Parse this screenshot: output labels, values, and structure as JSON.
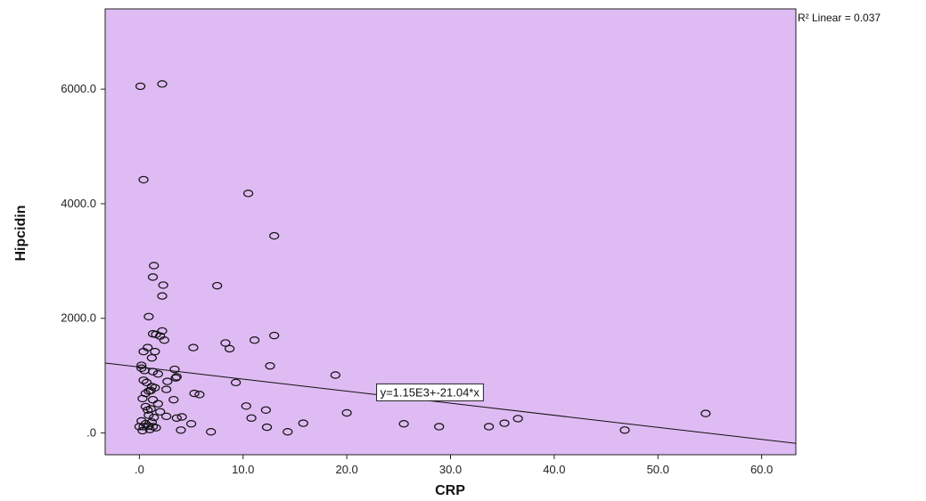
{
  "chart_data": {
    "type": "scatter",
    "title": "",
    "xlabel": "CRP",
    "ylabel": "Hipcidin",
    "xlim": [
      -3.3,
      63.3
    ],
    "ylim": [
      -380,
      7400
    ],
    "x_ticks": [
      0,
      10,
      20,
      30,
      40,
      50,
      60
    ],
    "x_tick_labels": [
      ".0",
      "10.0",
      "20.0",
      "30.0",
      "40.0",
      "50.0",
      "60.0"
    ],
    "y_ticks": [
      0,
      2000,
      4000,
      6000
    ],
    "y_tick_labels": [
      ".0",
      "2000.0",
      "4000.0",
      "6000.0"
    ],
    "grid": false,
    "plot_background": "#dfbbf3",
    "marker_color": "#111111",
    "fit_line": {
      "intercept": 1150,
      "slope": -21.04,
      "equation_label": "y=1.15E3+-21.04*x"
    },
    "r2_label": "R² Linear = 0.037",
    "points": [
      [
        0.1,
        6050
      ],
      [
        2.2,
        6090
      ],
      [
        0.4,
        4420
      ],
      [
        10.5,
        4180
      ],
      [
        13.0,
        3440
      ],
      [
        1.4,
        2920
      ],
      [
        1.3,
        2720
      ],
      [
        2.3,
        2580
      ],
      [
        7.5,
        2570
      ],
      [
        2.2,
        2390
      ],
      [
        0.9,
        2030
      ],
      [
        2.2,
        1780
      ],
      [
        1.3,
        1730
      ],
      [
        1.6,
        1720
      ],
      [
        2.0,
        1690
      ],
      [
        2.4,
        1620
      ],
      [
        13.0,
        1700
      ],
      [
        11.1,
        1620
      ],
      [
        8.3,
        1570
      ],
      [
        8.7,
        1470
      ],
      [
        5.2,
        1490
      ],
      [
        0.8,
        1490
      ],
      [
        0.4,
        1420
      ],
      [
        1.5,
        1420
      ],
      [
        1.2,
        1310
      ],
      [
        12.6,
        1170
      ],
      [
        0.2,
        1180
      ],
      [
        0.2,
        1130
      ],
      [
        3.4,
        1110
      ],
      [
        0.5,
        1090
      ],
      [
        1.3,
        1070
      ],
      [
        1.8,
        1030
      ],
      [
        3.6,
        980
      ],
      [
        3.5,
        960
      ],
      [
        18.9,
        1010
      ],
      [
        0.4,
        920
      ],
      [
        0.7,
        880
      ],
      [
        9.3,
        880
      ],
      [
        2.7,
        900
      ],
      [
        1.2,
        810
      ],
      [
        1.5,
        790
      ],
      [
        1.1,
        740
      ],
      [
        2.6,
        760
      ],
      [
        0.9,
        730
      ],
      [
        0.6,
        690
      ],
      [
        5.3,
        690
      ],
      [
        5.8,
        670
      ],
      [
        0.3,
        600
      ],
      [
        1.3,
        580
      ],
      [
        3.3,
        580
      ],
      [
        1.8,
        510
      ],
      [
        0.6,
        460
      ],
      [
        1.1,
        420
      ],
      [
        0.8,
        400
      ],
      [
        2.0,
        370
      ],
      [
        10.3,
        470
      ],
      [
        12.2,
        400
      ],
      [
        20.0,
        350
      ],
      [
        54.6,
        340
      ],
      [
        0.9,
        310
      ],
      [
        1.4,
        270
      ],
      [
        2.6,
        290
      ],
      [
        3.6,
        260
      ],
      [
        4.1,
        280
      ],
      [
        36.5,
        250
      ],
      [
        10.8,
        260
      ],
      [
        0.2,
        210
      ],
      [
        1.2,
        190
      ],
      [
        0.6,
        160
      ],
      [
        15.8,
        170
      ],
      [
        25.5,
        160
      ],
      [
        35.2,
        170
      ],
      [
        5.0,
        160
      ],
      [
        0.9,
        120
      ],
      [
        0.0,
        110
      ],
      [
        0.4,
        110
      ],
      [
        1.3,
        110
      ],
      [
        1.6,
        90
      ],
      [
        12.3,
        100
      ],
      [
        28.9,
        110
      ],
      [
        33.7,
        110
      ],
      [
        1.0,
        60
      ],
      [
        4.0,
        50
      ],
      [
        0.3,
        40
      ],
      [
        6.9,
        20
      ],
      [
        14.3,
        20
      ],
      [
        46.8,
        50
      ]
    ]
  }
}
